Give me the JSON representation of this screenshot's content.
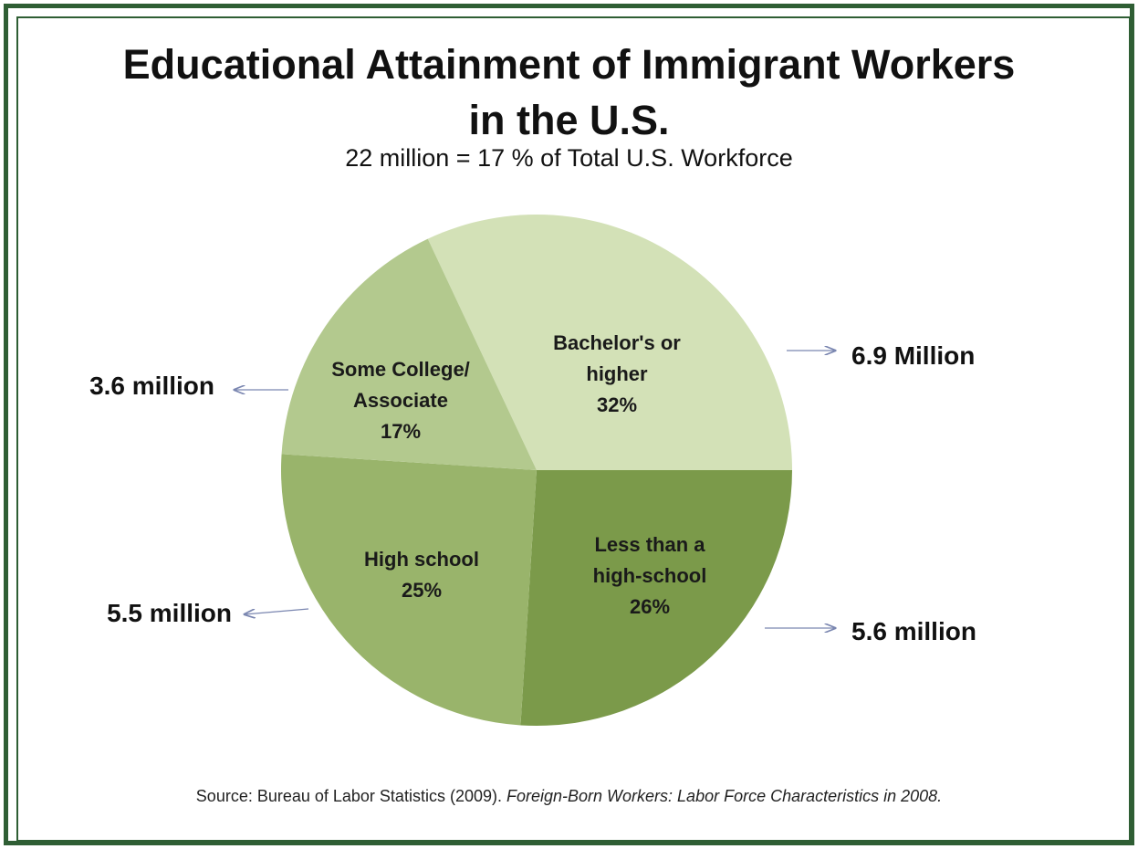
{
  "chart_data": {
    "type": "pie",
    "title_lines": [
      "Educational Attainment of Immigrant Workers",
      "in the U.S."
    ],
    "subtitle": "22 million = 17 % of Total U.S. Workforce",
    "slices": [
      {
        "label_lines": [
          "Bachelor's or",
          "higher"
        ],
        "percent_label": "32%",
        "value": 32,
        "count_label": "6.9 Million",
        "color": "#d3e1b7"
      },
      {
        "label_lines": [
          "Less than a",
          "high-school"
        ],
        "percent_label": "26%",
        "value": 26,
        "count_label": "5.6 million",
        "color": "#7b9a4a"
      },
      {
        "label_lines": [
          "High school"
        ],
        "percent_label": "25%",
        "value": 25,
        "count_label": "5.5 million",
        "color": "#99b46b"
      },
      {
        "label_lines": [
          "Some College/",
          "Associate"
        ],
        "percent_label": "17%",
        "value": 17,
        "count_label": "3.6 million",
        "color": "#b3c98e"
      }
    ],
    "legend": "none"
  },
  "source": {
    "prefix": "Source: Bureau of Labor Statistics (2009).",
    "italic": "Foreign-Born Workers: Labor Force Characteristics in 2008."
  },
  "colors": {
    "frame": "#2f5e34",
    "arrow": "#7a86b0"
  }
}
